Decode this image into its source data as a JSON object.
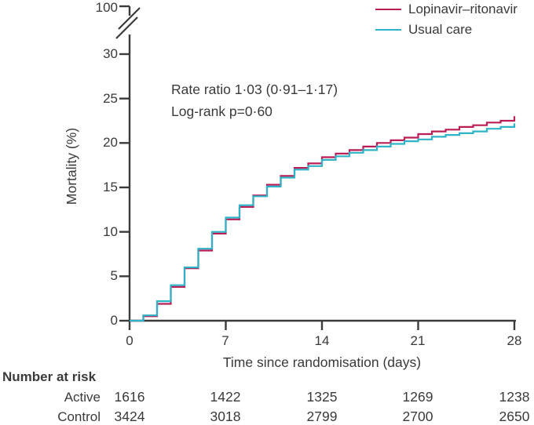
{
  "colors": {
    "axis": "#3b3b3b",
    "text": "#3a3a3a",
    "lopinavir": "#bb1d56",
    "usual_care": "#2fb3c8"
  },
  "legend": {
    "items": [
      {
        "label": "Lopinavir–ritonavir",
        "color": "#bb1d56"
      },
      {
        "label": "Usual care",
        "color": "#2fb3c8"
      }
    ]
  },
  "annotation": {
    "rate_ratio": "Rate ratio 1·03 (0·91–1·17)",
    "log_rank": "Log-rank p=0·60"
  },
  "chart_data": {
    "type": "line",
    "subtype": "kaplan-meier-step",
    "title": "",
    "xlabel": "Time since randomisation (days)",
    "ylabel": "Mortality (%)",
    "xlim": [
      0,
      28
    ],
    "ylim": [
      0,
      30
    ],
    "grid": false,
    "legend_position": "top-right",
    "y_axis_break": true,
    "y_break_label": "100",
    "x_ticks": [
      0,
      7,
      14,
      21,
      28
    ],
    "x_tick_labels": [
      "0",
      "7",
      "14",
      "21",
      "28"
    ],
    "y_ticks": [
      0,
      5,
      10,
      15,
      20,
      25,
      30
    ],
    "y_tick_labels": [
      "0",
      "5",
      "10",
      "15",
      "20",
      "25",
      "30"
    ],
    "x": [
      0,
      1,
      2,
      3,
      4,
      5,
      6,
      7,
      8,
      9,
      10,
      11,
      12,
      13,
      14,
      15,
      16,
      17,
      18,
      19,
      20,
      21,
      22,
      23,
      24,
      25,
      26,
      27,
      28
    ],
    "series": [
      {
        "name": "Lopinavir–ritonavir",
        "color": "#bb1d56",
        "values": [
          0,
          0.5,
          1.9,
          3.8,
          5.9,
          7.9,
          9.8,
          11.4,
          12.8,
          14.1,
          15.3,
          16.3,
          17.2,
          17.7,
          18.4,
          18.8,
          19.2,
          19.6,
          20.0,
          20.3,
          20.6,
          21.0,
          21.3,
          21.5,
          21.8,
          22.0,
          22.3,
          22.5,
          23.0
        ]
      },
      {
        "name": "Usual care",
        "color": "#2fb3c8",
        "values": [
          0,
          0.6,
          2.2,
          4.0,
          6.0,
          8.1,
          10.0,
          11.6,
          13.0,
          14.0,
          15.1,
          16.1,
          17.0,
          17.4,
          18.1,
          18.5,
          18.9,
          19.2,
          19.6,
          19.9,
          20.2,
          20.4,
          20.7,
          20.9,
          21.1,
          21.3,
          21.6,
          21.8,
          22.2
        ]
      }
    ]
  },
  "risk_table": {
    "title": "Number at risk",
    "rows": [
      {
        "label": "Active",
        "values": [
          "1616",
          "1422",
          "1325",
          "1269",
          "1238"
        ]
      },
      {
        "label": "Control",
        "values": [
          "3424",
          "3018",
          "2799",
          "2700",
          "2650"
        ]
      }
    ]
  }
}
